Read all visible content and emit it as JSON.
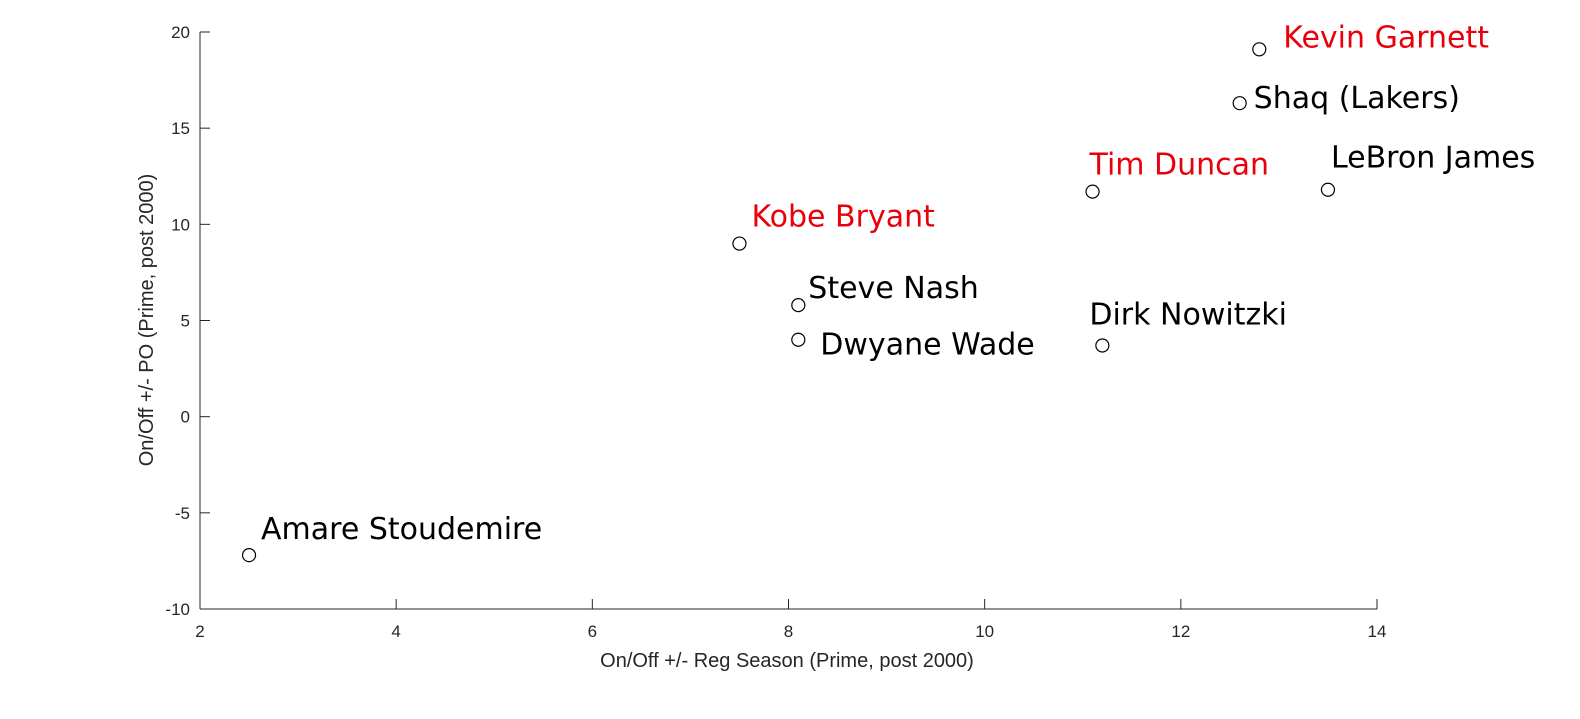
{
  "chart_data": {
    "type": "scatter",
    "xlabel": "On/Off +/- Reg Season (Prime, post 2000)",
    "ylabel": "On/Off +/- PO (Prime, post 2000)",
    "xlim": [
      2,
      14
    ],
    "ylim": [
      -10,
      20
    ],
    "xticks": [
      "2",
      "4",
      "6",
      "8",
      "10",
      "12",
      "14"
    ],
    "yticks": [
      "-10",
      "-5",
      "0",
      "5",
      "10",
      "15",
      "20"
    ],
    "grid": false,
    "marker": "open-circle",
    "colors": {
      "default": "#000000",
      "highlight": "#e8000b",
      "axis": "#262626"
    },
    "points": [
      {
        "label": "Kevin Garnett",
        "x": 12.8,
        "y": 19.1,
        "highlight": true
      },
      {
        "label": "Shaq (Lakers)",
        "x": 12.6,
        "y": 16.3,
        "highlight": false
      },
      {
        "label": "Tim Duncan",
        "x": 11.1,
        "y": 11.7,
        "highlight": true
      },
      {
        "label": "LeBron James",
        "x": 13.5,
        "y": 11.8,
        "highlight": false
      },
      {
        "label": "Kobe Bryant",
        "x": 7.5,
        "y": 9.0,
        "highlight": true
      },
      {
        "label": "Steve Nash",
        "x": 8.1,
        "y": 5.8,
        "highlight": false
      },
      {
        "label": "Dwyane Wade",
        "x": 8.1,
        "y": 4.0,
        "highlight": false
      },
      {
        "label": "Dirk Nowitzki",
        "x": 11.2,
        "y": 3.7,
        "highlight": false
      },
      {
        "label": "Amare Stoudemire",
        "x": 2.5,
        "y": -7.2,
        "highlight": false
      }
    ]
  }
}
